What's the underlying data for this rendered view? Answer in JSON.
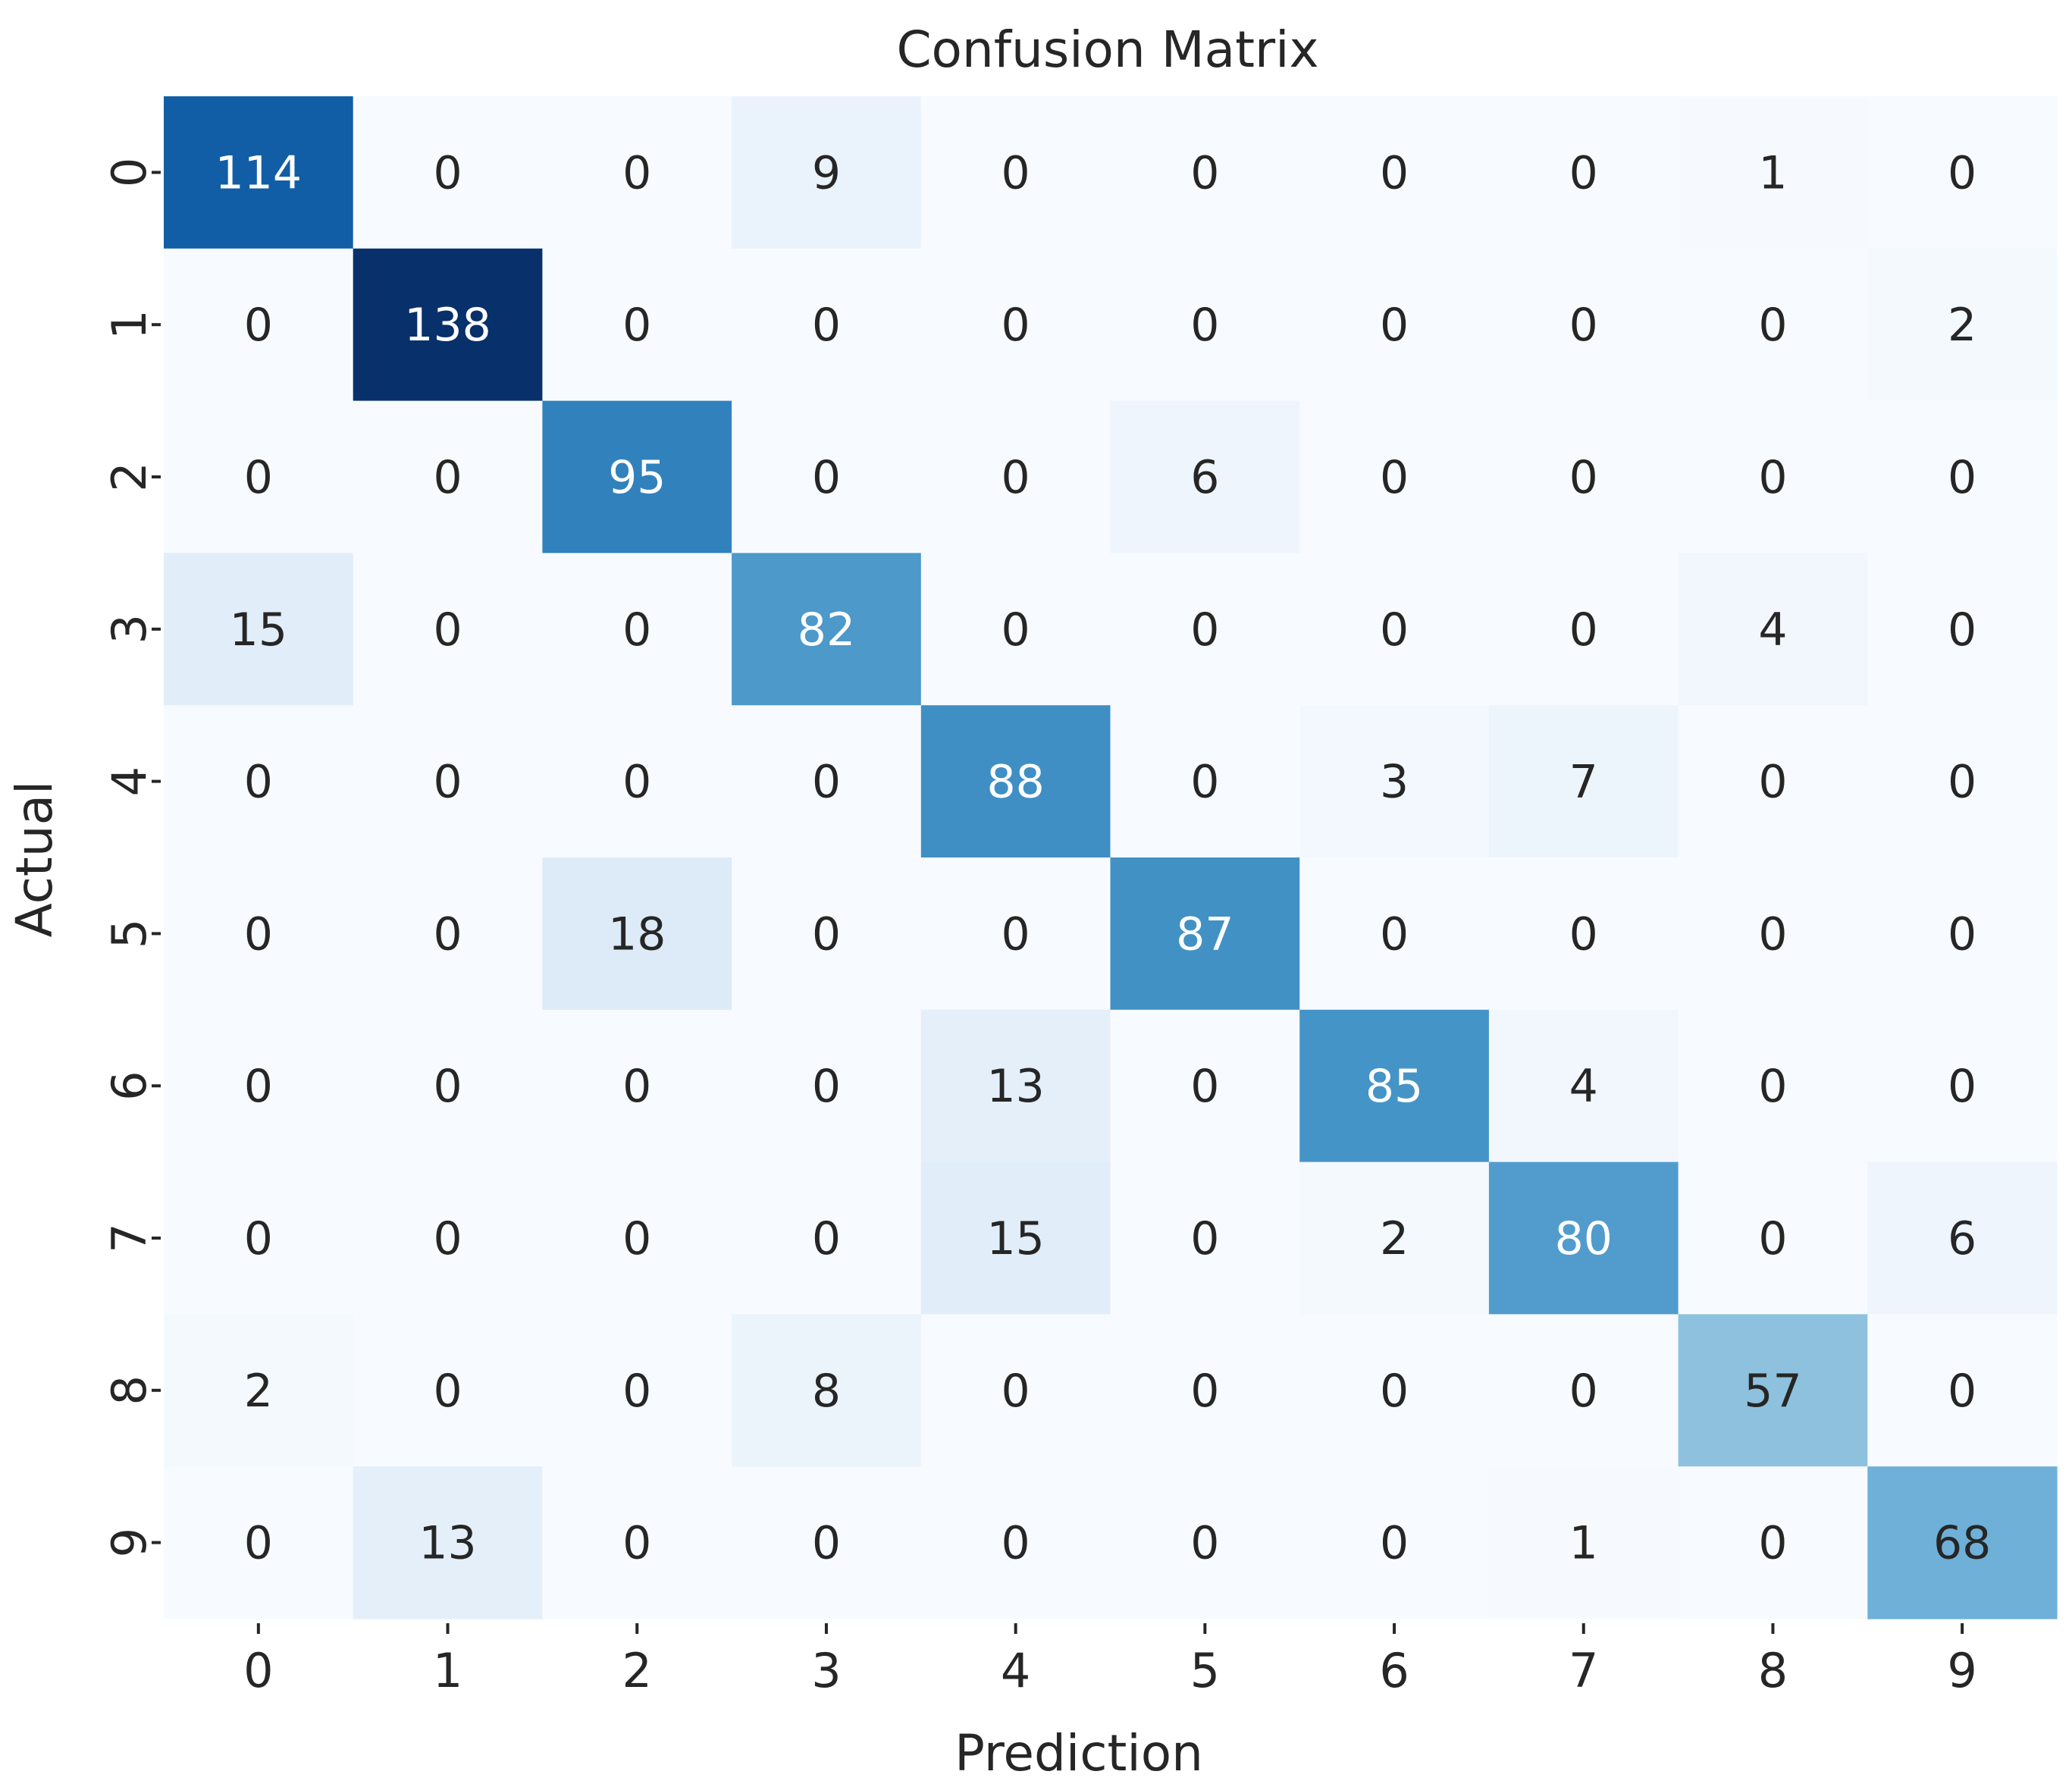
{
  "chart_data": {
    "type": "heatmap",
    "title": "Confusion Matrix",
    "xlabel": "Prediction",
    "ylabel": "Actual",
    "x_categories": [
      "0",
      "1",
      "2",
      "3",
      "4",
      "5",
      "6",
      "7",
      "8",
      "9"
    ],
    "y_categories": [
      "0",
      "1",
      "2",
      "3",
      "4",
      "5",
      "6",
      "7",
      "8",
      "9"
    ],
    "matrix": [
      [
        114,
        0,
        0,
        9,
        0,
        0,
        0,
        0,
        1,
        0
      ],
      [
        0,
        138,
        0,
        0,
        0,
        0,
        0,
        0,
        0,
        2
      ],
      [
        0,
        0,
        95,
        0,
        0,
        6,
        0,
        0,
        0,
        0
      ],
      [
        15,
        0,
        0,
        82,
        0,
        0,
        0,
        0,
        4,
        0
      ],
      [
        0,
        0,
        0,
        0,
        88,
        0,
        3,
        7,
        0,
        0
      ],
      [
        0,
        0,
        18,
        0,
        0,
        87,
        0,
        0,
        0,
        0
      ],
      [
        0,
        0,
        0,
        0,
        13,
        0,
        85,
        4,
        0,
        0
      ],
      [
        0,
        0,
        0,
        0,
        15,
        0,
        2,
        80,
        0,
        6
      ],
      [
        2,
        0,
        0,
        8,
        0,
        0,
        0,
        0,
        57,
        0
      ],
      [
        0,
        13,
        0,
        0,
        0,
        0,
        0,
        1,
        0,
        68
      ]
    ],
    "colormap": "Blues",
    "colorbar": false,
    "grid": false,
    "colors": {
      "low": "#f7fbff",
      "high": "#08306b",
      "text_dark": "#262626",
      "text_light": "#ffffff"
    }
  }
}
